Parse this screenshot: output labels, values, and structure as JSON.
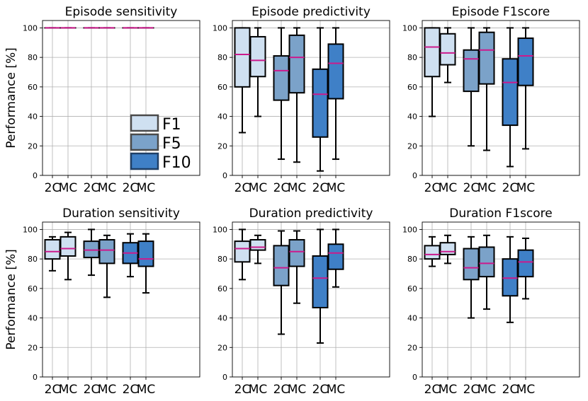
{
  "figure": {
    "ylabel": "Performance [%]",
    "colors": {
      "F1": "#cfe0f1",
      "F5": "#7ba2c9",
      "F10": "#3f80c7",
      "median": "#cc1a8c",
      "grid": "#b0b0b0",
      "edge": "#000000"
    },
    "legend": {
      "placement": "lower-right of first panel",
      "entries": [
        {
          "label": "F1",
          "color": "#cfe0f1",
          "edge": "#4a4a4a"
        },
        {
          "label": "F5",
          "color": "#7ba2c9",
          "edge": "#4a4a4a"
        },
        {
          "label": "F10",
          "color": "#3f80c7",
          "edge": "#1f3f66"
        }
      ]
    }
  },
  "chart_data": [
    {
      "type": "box",
      "title": "Episode sensitivity",
      "ylabel": "Performance [%]",
      "categories": [
        "2C",
        "MC",
        "2C",
        "MC",
        "2C",
        "MC"
      ],
      "groups": [
        "F1",
        "F1",
        "F5",
        "F5",
        "F10",
        "F10"
      ],
      "yticks": [
        0,
        20,
        40,
        60,
        80,
        100
      ],
      "ylim": [
        0,
        105
      ],
      "boxes": [
        {
          "min": 100,
          "q1": 100,
          "median": 100,
          "q3": 100,
          "max": 100
        },
        {
          "min": 100,
          "q1": 100,
          "median": 100,
          "q3": 100,
          "max": 100
        },
        {
          "min": 100,
          "q1": 100,
          "median": 100,
          "q3": 100,
          "max": 100
        },
        {
          "min": 100,
          "q1": 100,
          "median": 100,
          "q3": 100,
          "max": 100
        },
        {
          "min": 100,
          "q1": 100,
          "median": 100,
          "q3": 100,
          "max": 100
        },
        {
          "min": 100,
          "q1": 100,
          "median": 100,
          "q3": 100,
          "max": 100
        }
      ]
    },
    {
      "type": "box",
      "title": "Episode predictivity",
      "ylabel": "",
      "categories": [
        "2C",
        "MC",
        "2C",
        "MC",
        "2C",
        "MC"
      ],
      "groups": [
        "F1",
        "F1",
        "F5",
        "F5",
        "F10",
        "F10"
      ],
      "yticks": [
        0,
        20,
        40,
        60,
        80,
        100
      ],
      "ylim": [
        0,
        105
      ],
      "boxes": [
        {
          "min": 29,
          "q1": 60,
          "median": 82,
          "q3": 100,
          "max": 100
        },
        {
          "min": 40,
          "q1": 67,
          "median": 78,
          "q3": 94,
          "max": 100
        },
        {
          "min": 11,
          "q1": 51,
          "median": 71,
          "q3": 81,
          "max": 100
        },
        {
          "min": 9,
          "q1": 56,
          "median": 80,
          "q3": 95,
          "max": 100
        },
        {
          "min": 3,
          "q1": 26,
          "median": 55,
          "q3": 72,
          "max": 100
        },
        {
          "min": 11,
          "q1": 52,
          "median": 76,
          "q3": 89,
          "max": 100
        }
      ]
    },
    {
      "type": "box",
      "title": "Episode F1score",
      "ylabel": "",
      "categories": [
        "2C",
        "MC",
        "2C",
        "MC",
        "2C",
        "MC"
      ],
      "groups": [
        "F1",
        "F1",
        "F5",
        "F5",
        "F10",
        "F10"
      ],
      "yticks": [
        0,
        20,
        40,
        60,
        80,
        100
      ],
      "ylim": [
        0,
        105
      ],
      "boxes": [
        {
          "min": 40,
          "q1": 67,
          "median": 87,
          "q3": 100,
          "max": 100
        },
        {
          "min": 63,
          "q1": 75,
          "median": 83,
          "q3": 96,
          "max": 100
        },
        {
          "min": 20,
          "q1": 57,
          "median": 79,
          "q3": 85,
          "max": 100
        },
        {
          "min": 17,
          "q1": 62,
          "median": 85,
          "q3": 97,
          "max": 100
        },
        {
          "min": 6,
          "q1": 34,
          "median": 63,
          "q3": 79,
          "max": 100
        },
        {
          "min": 18,
          "q1": 61,
          "median": 81,
          "q3": 93,
          "max": 100
        }
      ]
    },
    {
      "type": "box",
      "title": "Duration sensitivity",
      "ylabel": "Performance [%]",
      "categories": [
        "2C",
        "MC",
        "2C",
        "MC",
        "2C",
        "MC"
      ],
      "groups": [
        "F1",
        "F1",
        "F5",
        "F5",
        "F10",
        "F10"
      ],
      "yticks": [
        0,
        20,
        40,
        60,
        80,
        100
      ],
      "ylim": [
        0,
        105
      ],
      "boxes": [
        {
          "min": 72,
          "q1": 80,
          "median": 85,
          "q3": 93,
          "max": 95
        },
        {
          "min": 66,
          "q1": 82,
          "median": 87,
          "q3": 95,
          "max": 98
        },
        {
          "min": 69,
          "q1": 81,
          "median": 86,
          "q3": 92,
          "max": 100
        },
        {
          "min": 54,
          "q1": 77,
          "median": 86,
          "q3": 93,
          "max": 96
        },
        {
          "min": 68,
          "q1": 77,
          "median": 84,
          "q3": 91,
          "max": 97
        },
        {
          "min": 57,
          "q1": 75,
          "median": 80,
          "q3": 92,
          "max": 97
        }
      ]
    },
    {
      "type": "box",
      "title": "Duration predictivity",
      "ylabel": "",
      "categories": [
        "2C",
        "MC",
        "2C",
        "MC",
        "2C",
        "MC"
      ],
      "groups": [
        "F1",
        "F1",
        "F5",
        "F5",
        "F10",
        "F10"
      ],
      "yticks": [
        0,
        20,
        40,
        60,
        80,
        100
      ],
      "ylim": [
        0,
        105
      ],
      "boxes": [
        {
          "min": 66,
          "q1": 78,
          "median": 87,
          "q3": 92,
          "max": 100
        },
        {
          "min": 77,
          "q1": 86,
          "median": 88,
          "q3": 93,
          "max": 96
        },
        {
          "min": 29,
          "q1": 62,
          "median": 74,
          "q3": 89,
          "max": 99
        },
        {
          "min": 50,
          "q1": 75,
          "median": 85,
          "q3": 93,
          "max": 99
        },
        {
          "min": 23,
          "q1": 47,
          "median": 67,
          "q3": 82,
          "max": 100
        },
        {
          "min": 61,
          "q1": 73,
          "median": 84,
          "q3": 90,
          "max": 100
        }
      ]
    },
    {
      "type": "box",
      "title": "Duration F1score",
      "ylabel": "",
      "categories": [
        "2C",
        "MC",
        "2C",
        "MC",
        "2C",
        "MC"
      ],
      "groups": [
        "F1",
        "F1",
        "F5",
        "F5",
        "F10",
        "F10"
      ],
      "yticks": [
        0,
        20,
        40,
        60,
        80,
        100
      ],
      "ylim": [
        0,
        105
      ],
      "boxes": [
        {
          "min": 75,
          "q1": 80,
          "median": 83,
          "q3": 89,
          "max": 95
        },
        {
          "min": 77,
          "q1": 83,
          "median": 85,
          "q3": 91,
          "max": 96
        },
        {
          "min": 40,
          "q1": 66,
          "median": 74,
          "q3": 87,
          "max": 95
        },
        {
          "min": 46,
          "q1": 68,
          "median": 77,
          "q3": 88,
          "max": 96
        },
        {
          "min": 37,
          "q1": 55,
          "median": 67,
          "q3": 80,
          "max": 95
        },
        {
          "min": 53,
          "q1": 68,
          "median": 78,
          "q3": 86,
          "max": 94
        }
      ]
    }
  ]
}
